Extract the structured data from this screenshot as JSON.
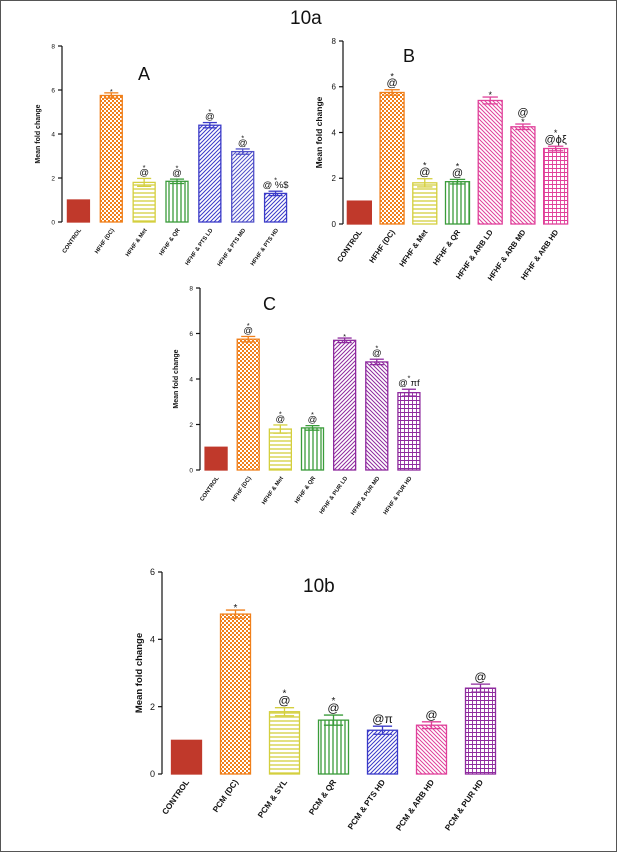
{
  "titles": {
    "fig_10a": "10a",
    "fig_10b": "10b"
  },
  "chart_data": [
    {
      "id": "A",
      "type": "bar",
      "panel_label": "A",
      "ylabel": "Mean fold change",
      "ylim": [
        0,
        8
      ],
      "yticks": [
        0,
        2,
        4,
        6,
        8
      ],
      "categories": [
        "CONTROL",
        "HFHF (DC)",
        "HFHF & Met",
        "HFHF & QR",
        "HFHF & PTS LD",
        "HFHF & PTS MD",
        "HFHF & PTS HD"
      ],
      "values": [
        1.0,
        5.75,
        1.8,
        1.85,
        4.4,
        3.2,
        1.3
      ],
      "errors": [
        0,
        0.12,
        0.18,
        0.1,
        0.12,
        0.12,
        0.1
      ],
      "annotations": [
        [],
        [
          "*"
        ],
        [
          "*",
          "@"
        ],
        [
          "*",
          "@"
        ],
        [
          "*",
          "@"
        ],
        [
          "*",
          "@"
        ],
        [
          "*",
          "@ %$"
        ]
      ],
      "colors": [
        "#c0392b",
        "#f07f1a",
        "#d4cf3e",
        "#3a9c3a",
        "#3a3ac8",
        "#5050c8",
        "#3a3ac8"
      ],
      "patterns": [
        "solid",
        "check",
        "hstripe",
        "vstripe",
        "diag",
        "diag",
        "diag"
      ]
    },
    {
      "id": "B",
      "type": "bar",
      "panel_label": "B",
      "ylabel": "Mean fold change",
      "ylim": [
        0,
        8
      ],
      "yticks": [
        0,
        2,
        4,
        6,
        8
      ],
      "categories": [
        "CONTROL",
        "HFHF (DC)",
        "HFHF & Met",
        "HFHF & QR",
        "HFHF & ARB LD",
        "HFHF & ARB MD",
        "HFHF & ARB HD"
      ],
      "values": [
        1.0,
        5.75,
        1.8,
        1.85,
        5.4,
        4.25,
        3.3
      ],
      "errors": [
        0,
        0.12,
        0.18,
        0.1,
        0.15,
        0.12,
        0.1
      ],
      "annotations": [
        [],
        [
          "*",
          "@"
        ],
        [
          "*",
          "@"
        ],
        [
          "*",
          "@"
        ],
        [
          "*"
        ],
        [
          "@",
          "*"
        ],
        [
          "*",
          "@ϕξ"
        ]
      ],
      "colors": [
        "#c0392b",
        "#f07f1a",
        "#d4cf3e",
        "#3a9c3a",
        "#e0409a",
        "#e0409a",
        "#e0409a"
      ],
      "patterns": [
        "solid",
        "check",
        "hstripe",
        "vstripe",
        "diagr",
        "diagr",
        "grid"
      ]
    },
    {
      "id": "C",
      "type": "bar",
      "panel_label": "C",
      "ylabel": "Mean fold change",
      "ylim": [
        0,
        8
      ],
      "yticks": [
        0,
        2,
        4,
        6,
        8
      ],
      "categories": [
        "CONTROL",
        "HFHF (DC)",
        "HFHF & Met",
        "HFHF & QR",
        "HFHF & PUR LD",
        "HFHF & PUR MD",
        "HFHF & PUR HD"
      ],
      "values": [
        1.0,
        5.75,
        1.8,
        1.85,
        5.7,
        4.75,
        3.4
      ],
      "errors": [
        0,
        0.12,
        0.18,
        0.1,
        0.1,
        0.12,
        0.15
      ],
      "annotations": [
        [],
        [
          "*",
          "@"
        ],
        [
          "*",
          "@"
        ],
        [
          "*",
          "@"
        ],
        [
          "*"
        ],
        [
          "*",
          "@"
        ],
        [
          "*",
          "@ πf"
        ]
      ],
      "colors": [
        "#c0392b",
        "#f07f1a",
        "#d4cf3e",
        "#3a9c3a",
        "#8e2a9e",
        "#8e2a9e",
        "#8e2a9e"
      ],
      "patterns": [
        "solid",
        "check",
        "hstripe",
        "vstripe",
        "diag",
        "diagr",
        "grid"
      ]
    },
    {
      "id": "10b",
      "type": "bar",
      "panel_label": "",
      "ylabel": "Mean fold change",
      "ylim": [
        0,
        6
      ],
      "yticks": [
        0,
        2,
        4,
        6
      ],
      "categories": [
        "CONTROL",
        "PCM (DC)",
        "PCM & SYL",
        "PCM & QR",
        "PCM & PTS HD",
        "PCM & ARB HD",
        "PCM & PUR HD"
      ],
      "values": [
        1.0,
        4.75,
        1.85,
        1.6,
        1.3,
        1.45,
        2.55
      ],
      "errors": [
        0,
        0.12,
        0.12,
        0.15,
        0.12,
        0.1,
        0.12
      ],
      "annotations": [
        [],
        [
          "*"
        ],
        [
          "*",
          "@"
        ],
        [
          "*",
          "@"
        ],
        [
          "@π"
        ],
        [
          "@"
        ],
        [
          "@"
        ]
      ],
      "colors": [
        "#c0392b",
        "#f07f1a",
        "#d4cf3e",
        "#3a9c3a",
        "#3a3ac8",
        "#e0409a",
        "#8e2a9e"
      ],
      "patterns": [
        "solid",
        "check",
        "hstripe",
        "vstripe",
        "diag",
        "diagr",
        "grid"
      ]
    }
  ]
}
